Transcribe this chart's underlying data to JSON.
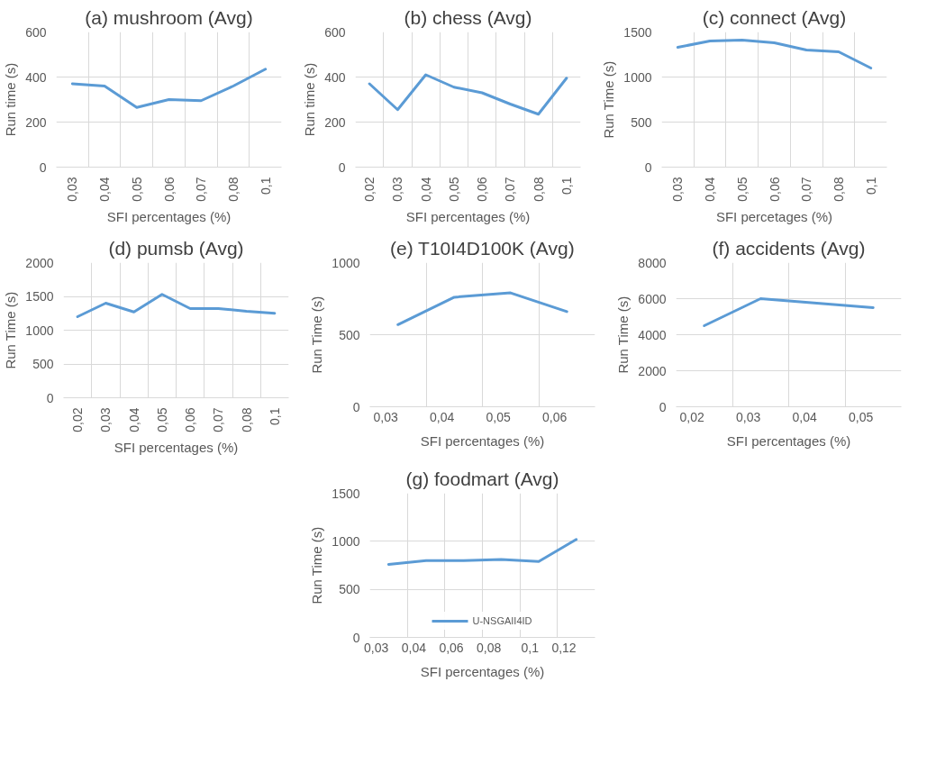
{
  "chart_data": [
    {
      "type": "line",
      "title": "(a) mushroom (Avg)",
      "xlabel": "SFI percentages (%)",
      "ylabel": "Run time (s)",
      "categories": [
        "0,03",
        "0,04",
        "0,05",
        "0,06",
        "0,07",
        "0,08",
        "0,1"
      ],
      "ylim": [
        0,
        600
      ],
      "yticks": [
        0,
        200,
        400,
        600
      ],
      "grid": true,
      "series": [
        {
          "color": "#5b9bd5",
          "values": [
            370,
            360,
            265,
            300,
            295,
            360,
            435
          ]
        }
      ]
    },
    {
      "type": "line",
      "title": "(b) chess (Avg)",
      "xlabel": "SFI percentages (%)",
      "ylabel": "Run time (s)",
      "categories": [
        "0,02",
        "0,03",
        "0,04",
        "0,05",
        "0,06",
        "0,07",
        "0,08",
        "0,1"
      ],
      "ylim": [
        0,
        600
      ],
      "yticks": [
        0,
        200,
        400,
        600
      ],
      "grid": true,
      "series": [
        {
          "color": "#5b9bd5",
          "values": [
            370,
            255,
            410,
            355,
            330,
            280,
            235,
            395
          ]
        }
      ]
    },
    {
      "type": "line",
      "title": "(c) connect (Avg)",
      "xlabel": "SFI percetages (%)",
      "ylabel": "Run Time (s)",
      "categories": [
        "0,03",
        "0,04",
        "0,05",
        "0,06",
        "0,07",
        "0,08",
        "0,1"
      ],
      "ylim": [
        0,
        1500
      ],
      "yticks": [
        0,
        500,
        1000,
        1500
      ],
      "grid": true,
      "series": [
        {
          "color": "#5b9bd5",
          "values": [
            1330,
            1400,
            1410,
            1380,
            1300,
            1280,
            1100
          ]
        }
      ]
    },
    {
      "type": "line",
      "title": "(d) pumsb (Avg)",
      "xlabel": "SFI percentages (%)",
      "ylabel": "Run Time (s)",
      "categories": [
        "0,02",
        "0,03",
        "0,04",
        "0,05",
        "0,06",
        "0,07",
        "0,08",
        "0,1"
      ],
      "ylim": [
        0,
        2000
      ],
      "yticks": [
        0,
        500,
        1000,
        1500,
        2000
      ],
      "grid": true,
      "series": [
        {
          "color": "#5b9bd5",
          "values": [
            1200,
            1400,
            1270,
            1530,
            1320,
            1320,
            1280,
            1250
          ]
        }
      ]
    },
    {
      "type": "line",
      "title": "(e) T10I4D100K (Avg)",
      "xlabel": "SFI percentages (%)",
      "ylabel": "Run Time (s)",
      "categories": [
        "0,03",
        "0,04",
        "0,05",
        "0,06"
      ],
      "ylim": [
        0,
        1000
      ],
      "yticks": [
        0,
        500,
        1000
      ],
      "grid": true,
      "series": [
        {
          "color": "#5b9bd5",
          "values": [
            570,
            760,
            790,
            660
          ]
        }
      ]
    },
    {
      "type": "line",
      "title": "(f) accidents (Avg)",
      "xlabel": "SFI percentages (%)",
      "ylabel": "Run Time (s)",
      "categories": [
        "0,02",
        "0,03",
        "0,04",
        "0,05"
      ],
      "ylim": [
        0,
        8000
      ],
      "yticks": [
        0,
        2000,
        4000,
        6000,
        8000
      ],
      "grid": true,
      "series": [
        {
          "color": "#5b9bd5",
          "values": [
            4500,
            6000,
            5750,
            5500
          ]
        }
      ]
    },
    {
      "type": "line",
      "title": "(g) foodmart (Avg)",
      "xlabel": "SFI percentages (%)",
      "ylabel": "Run Time (s)",
      "categories": [
        "0,03",
        "0,04",
        "0,06",
        "0,08",
        "0,1",
        "0,12"
      ],
      "ylim": [
        0,
        1500
      ],
      "yticks": [
        0,
        500,
        1000,
        1500
      ],
      "grid": true,
      "legend": "bottom",
      "series": [
        {
          "name": "U-NSGAII4ID",
          "color": "#5b9bd5",
          "values": [
            760,
            800,
            800,
            810,
            790,
            1020
          ]
        }
      ]
    }
  ]
}
